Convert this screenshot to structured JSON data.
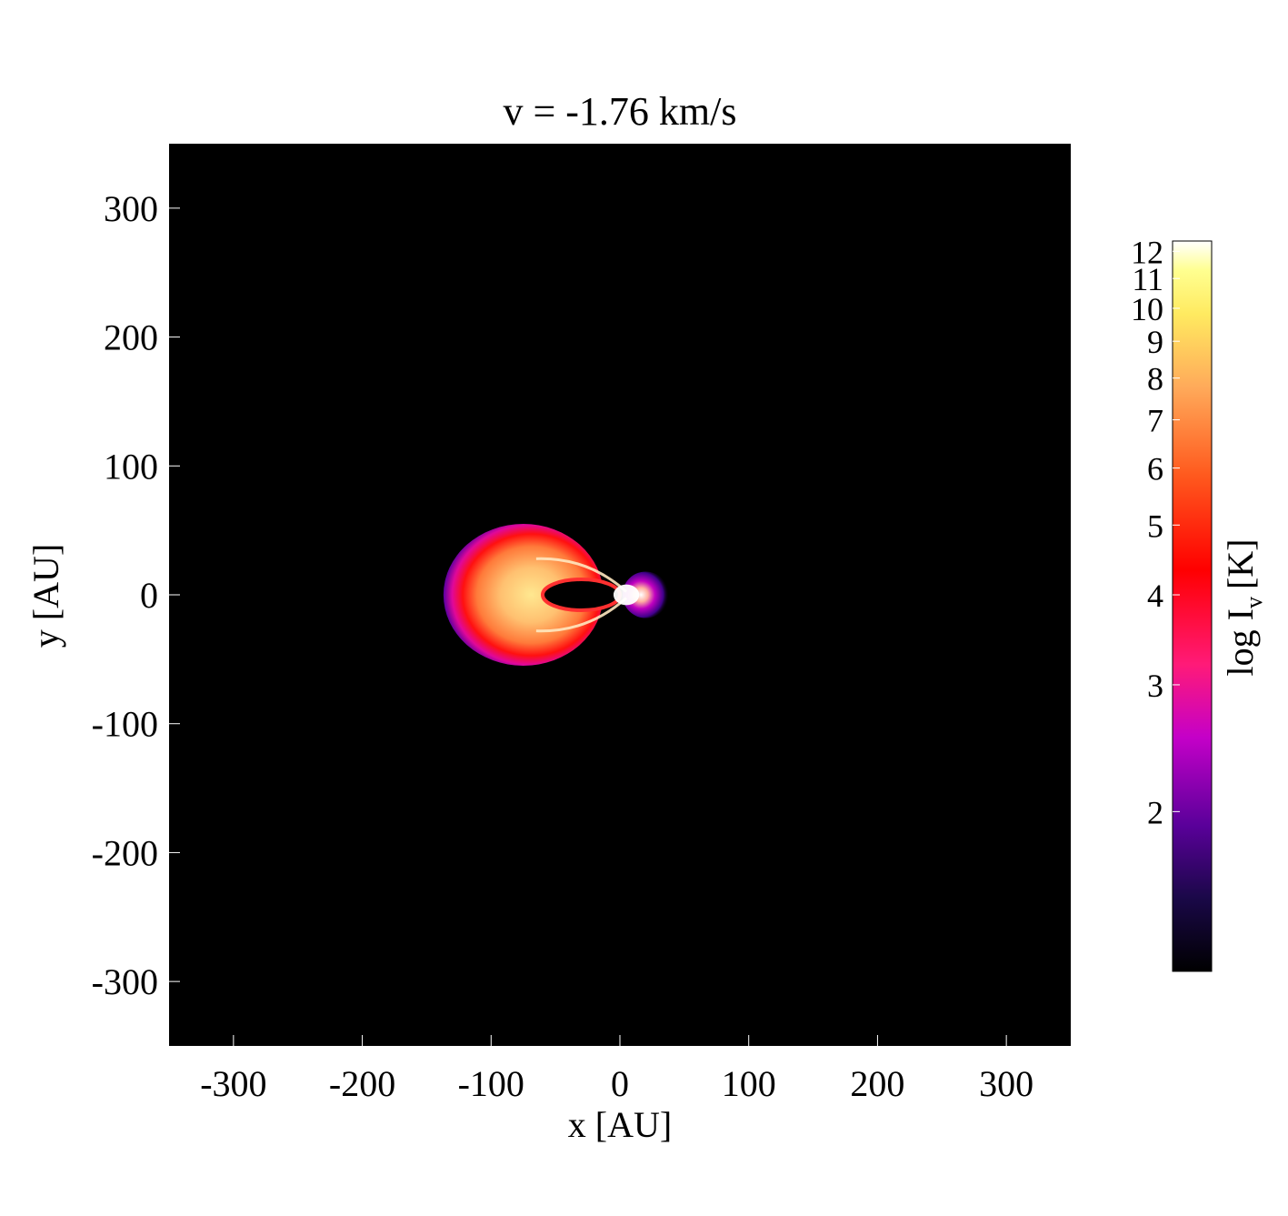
{
  "chart_data": {
    "type": "heatmap",
    "title": "v =  -1.76 km/s",
    "xlabel": "x [AU]",
    "ylabel": "y [AU]",
    "xlim": [
      -350,
      350
    ],
    "ylim": [
      -350,
      350
    ],
    "xticks": [
      -300,
      -200,
      -100,
      0,
      100,
      200,
      300
    ],
    "yticks": [
      300,
      200,
      100,
      0,
      -100,
      -200,
      -300
    ],
    "colorbar": {
      "label": "log I",
      "label_subscript": "v",
      "label_unit": "[K]",
      "scale": "log",
      "range": [
        1.2,
        12.4
      ],
      "ticks": [
        2,
        3,
        4,
        5,
        6,
        7,
        8,
        9,
        10,
        11,
        12
      ],
      "colormap": [
        "#000000",
        "#2a0a5e",
        "#6a00a8",
        "#c800c8",
        "#ff1a66",
        "#ff0000",
        "#ff6a20",
        "#ffb060",
        "#ffe060",
        "#ffff80",
        "#ffffff"
      ]
    },
    "background_color": "#000000",
    "emission": [
      {
        "component": "outer shell",
        "x_center": -75,
        "y_center": 0,
        "x_radius": 62,
        "y_radius": 55,
        "log_level_range": [
          2,
          9
        ]
      },
      {
        "component": "central cavity",
        "x_center": -30,
        "y_center": 0,
        "x_radius": 30,
        "y_radius": 12,
        "log_level_range": [
          1.2,
          2
        ]
      },
      {
        "component": "bright tip",
        "x_center": 5,
        "y_center": 0,
        "x_radius": 10,
        "y_radius": 8,
        "log_level_range": [
          10,
          12
        ]
      },
      {
        "component": "outer glow",
        "x_center": 20,
        "y_center": 0,
        "x_radius": 18,
        "y_radius": 18,
        "log_level_range": [
          1.5,
          3
        ]
      }
    ]
  }
}
